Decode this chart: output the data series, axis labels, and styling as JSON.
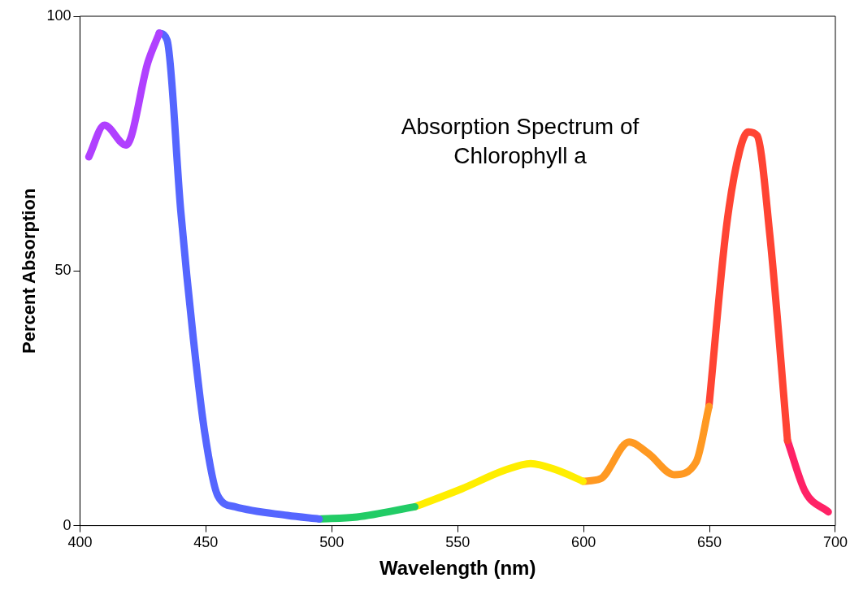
{
  "chart_data": {
    "type": "line",
    "title": "Absorption Spectrum of Chlorophyll a",
    "xlabel": "Wavelength (nm)",
    "ylabel": "Percent Absorption",
    "xlim": [
      400,
      700
    ],
    "xticks": [
      400,
      450,
      500,
      550,
      600,
      650,
      700
    ],
    "ylim": [
      0,
      100
    ],
    "yticks": [
      0,
      50,
      100
    ],
    "grid": false,
    "legend": false,
    "marker": "none",
    "line_style": "solid",
    "series": [
      {
        "color": "#b040ff",
        "x": [
          403.5,
          409.7,
          418.3,
          427,
          431.5
        ],
        "values": [
          72.4,
          78.6,
          74.7,
          91,
          96.7
        ]
      },
      {
        "color": "#5566ff",
        "x": [
          431.5,
          434.6,
          440,
          445,
          449.5,
          454.7,
          461.6,
          482.4,
          495
        ],
        "values": [
          96.7,
          95.3,
          61.9,
          36.8,
          18.4,
          5.9,
          3.7,
          2,
          1.3
        ]
      },
      {
        "color": "#22cc66",
        "x": [
          495,
          510,
          533
        ],
        "values": [
          1.3,
          1.7,
          3.7
        ]
      },
      {
        "color": "#ffee00",
        "x": [
          533,
          551.5,
          568.8,
          579,
          589.4,
          599.8
        ],
        "values": [
          3.7,
          7.2,
          10.9,
          12.2,
          10.9,
          8.7
        ]
      },
      {
        "color": "#ff9922",
        "x": [
          599.8,
          606.7,
          618.1,
          625.7,
          636,
          644.7,
          649.8
        ],
        "values": [
          8.7,
          9.2,
          16.4,
          14.2,
          10,
          12.5,
          23.4
        ]
      },
      {
        "color": "#ff4433",
        "x": [
          649.8,
          656.7,
          662,
          665.4,
          668.9,
          674,
          681
        ],
        "values": [
          23.4,
          58.5,
          73.6,
          77.3,
          76.6,
          56.9,
          16.7
        ]
      },
      {
        "color": "#ff2266",
        "x": [
          681,
          688,
          697.2
        ],
        "values": [
          16.7,
          6.7,
          2.7
        ]
      }
    ]
  }
}
